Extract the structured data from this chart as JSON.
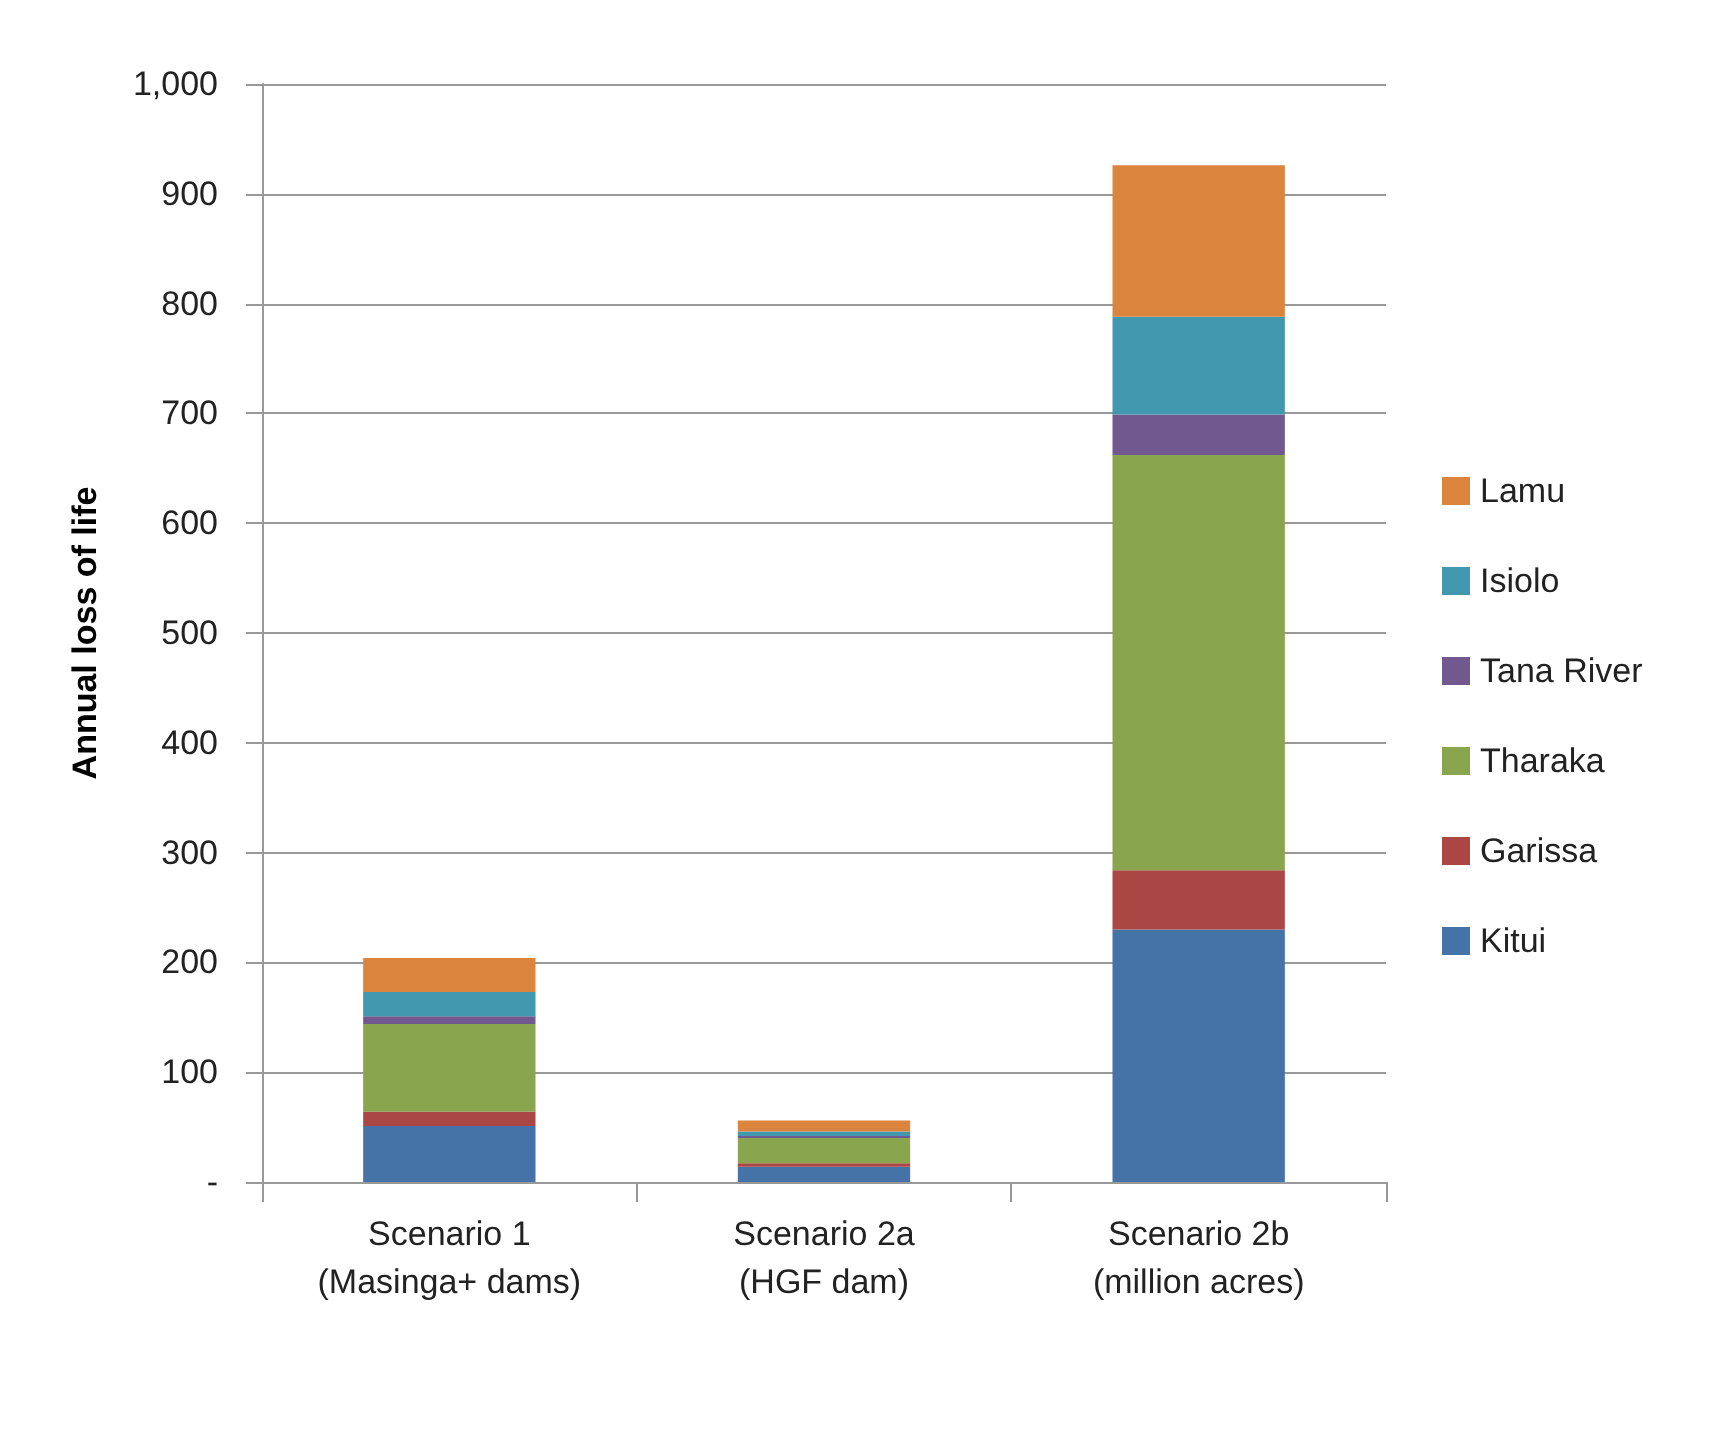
{
  "chart_data": {
    "type": "bar",
    "stacked": true,
    "ylabel": "Annual loss of life",
    "categories": [
      "Scenario 1\n(Masinga+ dams)",
      "Scenario 2a\n(HGF dam)",
      "Scenario 2b\n(million acres)"
    ],
    "series": [
      {
        "name": "Kitui",
        "color": "#4572a7",
        "values": [
          51,
          14,
          230
        ]
      },
      {
        "name": "Garissa",
        "color": "#aa4643",
        "values": [
          13,
          3,
          54
        ]
      },
      {
        "name": "Tharaka",
        "color": "#89a54e",
        "values": [
          80,
          23,
          378
        ]
      },
      {
        "name": "Tana River",
        "color": "#71588f",
        "values": [
          7,
          2,
          37
        ]
      },
      {
        "name": "Isiolo",
        "color": "#4198af",
        "values": [
          22,
          4,
          89
        ]
      },
      {
        "name": "Lamu",
        "color": "#db843d",
        "values": [
          31,
          10,
          138
        ]
      }
    ],
    "ylim": [
      0,
      1000
    ],
    "yticks": [
      {
        "value": 0,
        "label": "-"
      },
      100,
      200,
      300,
      400,
      500,
      600,
      700,
      800,
      900,
      {
        "value": 1000,
        "label": "1,000"
      }
    ],
    "grid": "y",
    "legend": "right"
  }
}
